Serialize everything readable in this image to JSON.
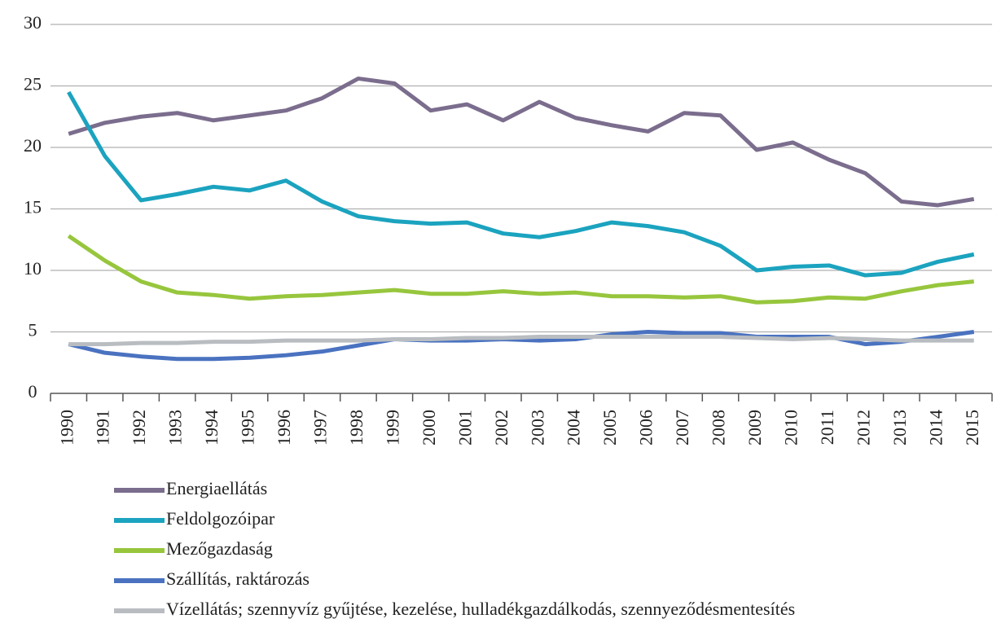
{
  "chart_data": {
    "type": "line",
    "categories": [
      "1990",
      "1991",
      "1992",
      "1993",
      "1994",
      "1995",
      "1996",
      "1997",
      "1998",
      "1999",
      "2000",
      "2001",
      "2002",
      "2003",
      "2004",
      "2005",
      "2006",
      "2007",
      "2008",
      "2009",
      "2010",
      "2011",
      "2012",
      "2013",
      "2014",
      "2015"
    ],
    "series": [
      {
        "name": "Energiaellátás",
        "color": "#7b6d8d",
        "values": [
          21.1,
          22.0,
          22.5,
          22.8,
          22.2,
          22.6,
          23.0,
          24.0,
          25.6,
          25.2,
          23.0,
          23.5,
          22.2,
          23.7,
          22.4,
          21.8,
          21.3,
          22.8,
          22.6,
          19.8,
          20.4,
          19.0,
          17.9,
          15.6,
          15.3,
          15.8
        ]
      },
      {
        "name": "Feldolgozóipar",
        "color": "#1ba3bf",
        "values": [
          24.5,
          19.3,
          15.7,
          16.2,
          16.8,
          16.5,
          17.3,
          15.6,
          14.4,
          14.0,
          13.8,
          13.9,
          13.0,
          12.7,
          13.2,
          13.9,
          13.6,
          13.1,
          12.0,
          10.0,
          10.3,
          10.4,
          9.6,
          9.8,
          10.7,
          11.3
        ]
      },
      {
        "name": "Mezőgazdaság",
        "color": "#97c63d",
        "values": [
          12.8,
          10.8,
          9.1,
          8.2,
          8.0,
          7.7,
          7.9,
          8.0,
          8.2,
          8.4,
          8.1,
          8.1,
          8.3,
          8.1,
          8.2,
          7.9,
          7.9,
          7.8,
          7.9,
          7.4,
          7.5,
          7.8,
          7.7,
          8.3,
          8.8,
          9.1
        ]
      },
      {
        "name": "Szállítás, raktározás",
        "color": "#4a72c0",
        "values": [
          4.0,
          3.3,
          3.0,
          2.8,
          2.8,
          2.9,
          3.1,
          3.4,
          3.9,
          4.4,
          4.3,
          4.3,
          4.4,
          4.3,
          4.4,
          4.8,
          5.0,
          4.9,
          4.9,
          4.6,
          4.6,
          4.6,
          4.0,
          4.2,
          4.6,
          5.0
        ]
      },
      {
        "name": "Vízellátás; szennyvíz gyűjtése, kezelése, hulladékgazdálkodás, szennyeződésmentesítés",
        "color": "#b9bdc1",
        "values": [
          4.0,
          4.0,
          4.1,
          4.1,
          4.2,
          4.2,
          4.3,
          4.3,
          4.3,
          4.4,
          4.4,
          4.5,
          4.5,
          4.6,
          4.6,
          4.6,
          4.6,
          4.6,
          4.6,
          4.5,
          4.4,
          4.5,
          4.4,
          4.3,
          4.3,
          4.3
        ]
      }
    ],
    "ylim": [
      0,
      30
    ],
    "yticks": [
      0,
      5,
      10,
      15,
      20,
      25,
      30
    ],
    "grid": true
  }
}
